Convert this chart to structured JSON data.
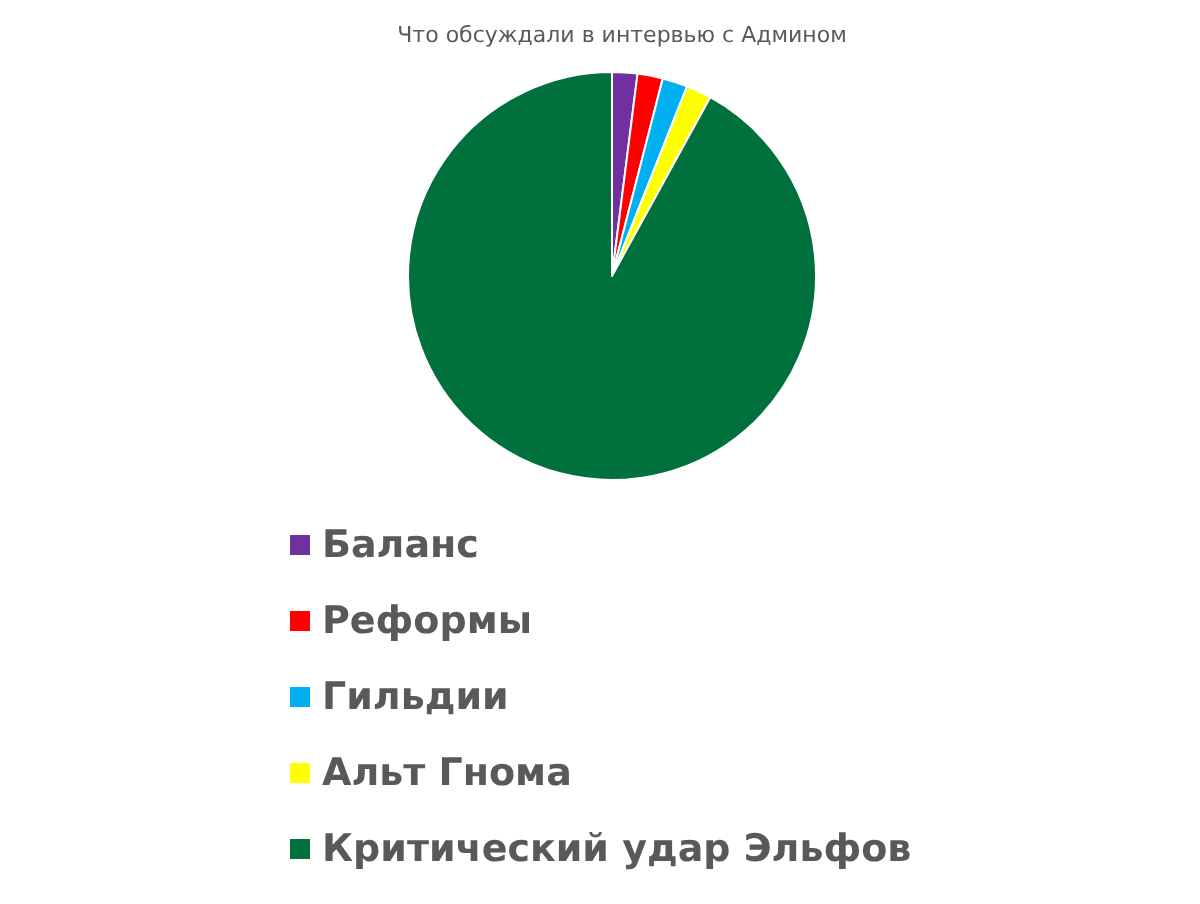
{
  "chart_data": {
    "type": "pie",
    "title": "Что обсуждали в интервью с Админом",
    "categories": [
      "Баланс",
      "Реформы",
      "Гильдии",
      "Альт Гнома",
      "Критический удар Эльфов"
    ],
    "values": [
      2,
      2,
      2,
      2,
      92
    ],
    "colors": [
      "#7030a0",
      "#ff0000",
      "#00b0f0",
      "#ffff00",
      "#00703c"
    ],
    "legend": "bottom"
  }
}
